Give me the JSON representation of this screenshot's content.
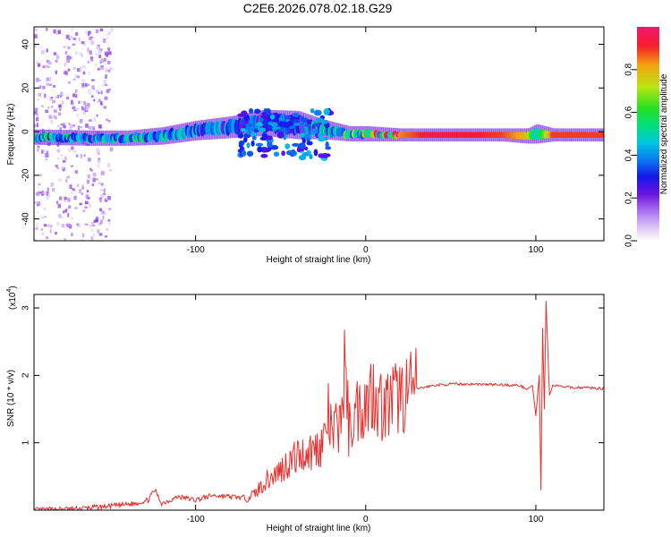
{
  "title": "C2E6.2026.078.02.18.G29",
  "colors": {
    "snr_line": "#e8302e",
    "axis": "#000000",
    "background": "#ffffff",
    "colormap": [
      "#ffffff",
      "#dcc8f5",
      "#a970f0",
      "#6a12e0",
      "#1418e8",
      "#0b7cf2",
      "#00c8e0",
      "#00e07a",
      "#26e021",
      "#b9e512",
      "#f5a30f",
      "#f51f29",
      "#f01774"
    ]
  },
  "chart_data": [
    {
      "id": "spectrogram",
      "type": "heatmap",
      "xlabel": "Height of straight line (km)",
      "ylabel": "Frequency (Hz)",
      "xlim": [
        -195,
        140
      ],
      "ylim": [
        -50,
        48
      ],
      "xticks": [
        -100,
        0,
        100
      ],
      "xtick_labels": [
        "-100",
        "0",
        "100"
      ],
      "yticks": [
        -40,
        -20,
        0,
        20,
        40
      ],
      "ytick_labels": [
        "-40",
        "-20",
        "0",
        "20",
        "40"
      ],
      "colorbar": {
        "label": "Normalized spectral amplitude",
        "range": [
          0,
          1
        ],
        "ticks": [
          0.0,
          0.2,
          0.4,
          0.6,
          0.8
        ],
        "tick_labels": [
          "0.0",
          "0.2",
          "0.4",
          "0.6",
          "0.8"
        ]
      },
      "ridge": [
        {
          "x": -195,
          "f": -2.5,
          "amp": 0.45,
          "width": 4
        },
        {
          "x": -160,
          "f": -3.0,
          "amp": 0.45,
          "width": 4
        },
        {
          "x": -140,
          "f": -3.0,
          "amp": 0.45,
          "width": 4
        },
        {
          "x": -120,
          "f": -2.0,
          "amp": 0.45,
          "width": 5
        },
        {
          "x": -100,
          "f": 0.5,
          "amp": 0.4,
          "width": 6
        },
        {
          "x": -80,
          "f": 2.0,
          "amp": 0.35,
          "width": 7
        },
        {
          "x": -60,
          "f": 4.0,
          "amp": 0.3,
          "width": 9
        },
        {
          "x": -40,
          "f": 3.0,
          "amp": 0.3,
          "width": 10
        },
        {
          "x": -25,
          "f": 1.0,
          "amp": 0.5,
          "width": 6
        },
        {
          "x": -10,
          "f": -1.0,
          "amp": 0.55,
          "width": 4
        },
        {
          "x": 0,
          "f": -1.0,
          "amp": 0.6,
          "width": 4
        },
        {
          "x": 20,
          "f": -1.5,
          "amp": 0.85,
          "width": 3
        },
        {
          "x": 40,
          "f": -1.5,
          "amp": 0.95,
          "width": 3
        },
        {
          "x": 80,
          "f": -1.5,
          "amp": 0.9,
          "width": 3
        },
        {
          "x": 95,
          "f": -2.0,
          "amp": 0.8,
          "width": 4
        },
        {
          "x": 100,
          "f": -1.0,
          "amp": 0.5,
          "width": 6
        },
        {
          "x": 110,
          "f": -1.5,
          "amp": 0.9,
          "width": 3
        },
        {
          "x": 140,
          "f": -1.5,
          "amp": 0.9,
          "width": 3
        }
      ]
    },
    {
      "id": "snr",
      "type": "line",
      "xlabel": "Height of straight line (km)",
      "ylabel": "SNR (10 * v/v)",
      "scale_label": "(x10",
      "scale_exp": "4",
      "scale_close": ")",
      "xlim": [
        -195,
        140
      ],
      "ylim": [
        0,
        3.2
      ],
      "xticks": [
        -100,
        0,
        100
      ],
      "xtick_labels": [
        "-100",
        "0",
        "100"
      ],
      "yticks": [
        1,
        2,
        3
      ],
      "ytick_labels": [
        "1",
        "2",
        "3"
      ],
      "series": [
        {
          "name": "SNR",
          "x": [
            -195,
            -170,
            -150,
            -135,
            -128,
            -124,
            -120,
            -110,
            -100,
            -90,
            -80,
            -70,
            -65,
            -60,
            -55,
            -50,
            -45,
            -40,
            -35,
            -30,
            -25,
            -22,
            -20,
            -15,
            -12,
            -10,
            -5,
            0,
            5,
            10,
            15,
            20,
            25,
            30,
            40,
            50,
            60,
            80,
            90,
            95,
            98,
            100,
            102,
            103,
            104,
            105,
            106,
            108,
            110,
            120,
            130,
            140
          ],
          "y": [
            0.0,
            0.02,
            0.06,
            0.1,
            0.15,
            0.3,
            0.1,
            0.2,
            0.15,
            0.22,
            0.2,
            0.18,
            0.25,
            0.4,
            0.5,
            0.6,
            0.72,
            0.8,
            0.85,
            0.9,
            1.0,
            1.4,
            1.1,
            1.3,
            2.2,
            1.2,
            1.5,
            1.6,
            1.8,
            1.5,
            1.6,
            1.7,
            1.75,
            1.8,
            1.85,
            1.87,
            1.87,
            1.86,
            1.85,
            1.8,
            1.85,
            1.4,
            2.0,
            0.3,
            2.7,
            1.5,
            3.1,
            1.7,
            1.85,
            1.82,
            1.82,
            1.8
          ]
        }
      ]
    }
  ]
}
